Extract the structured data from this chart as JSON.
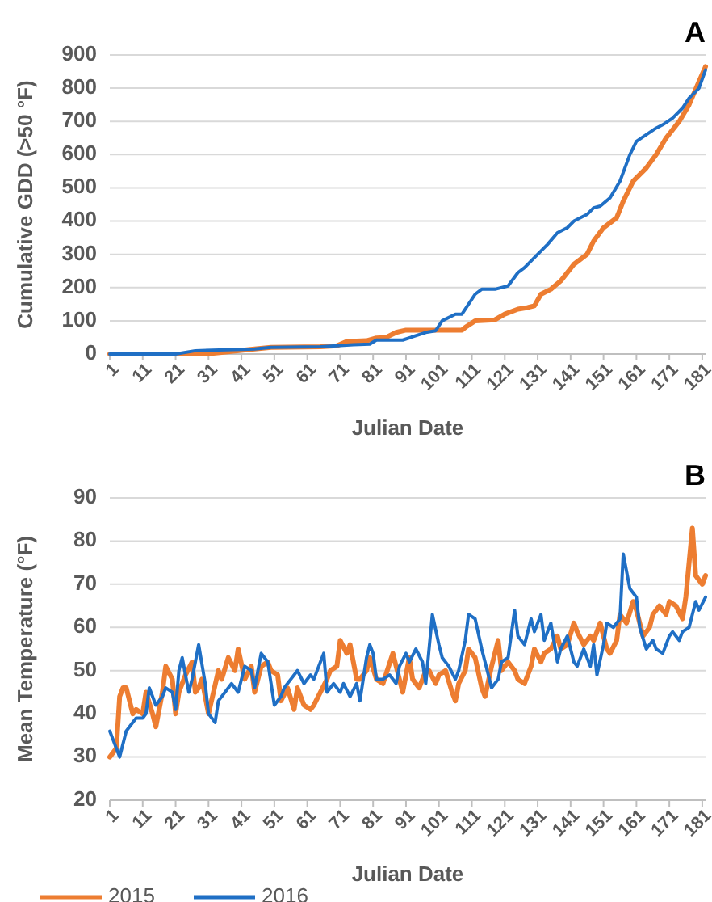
{
  "chart_data": [
    {
      "type": "line",
      "title": "A",
      "xlabel": "Julian Date",
      "ylabel": "Cumulative GDD (>50 °F)",
      "xlim": [
        1,
        182
      ],
      "xticks": [
        1,
        11,
        21,
        31,
        41,
        51,
        61,
        71,
        81,
        91,
        101,
        111,
        121,
        131,
        141,
        151,
        161,
        171,
        181
      ],
      "ylim": [
        0,
        900
      ],
      "yticks": [
        0,
        100,
        200,
        300,
        400,
        500,
        600,
        700,
        800,
        900
      ],
      "grid": "y",
      "line_style": "solid",
      "marker": "none",
      "series": [
        {
          "color": "#ed7d31",
          "x": [
            1,
            30,
            35,
            45,
            50,
            65,
            70,
            73,
            79,
            82,
            85,
            88,
            91,
            100,
            108,
            109,
            112,
            118,
            121,
            125,
            128,
            130,
            132,
            135,
            138,
            142,
            146,
            148,
            151,
            155,
            157,
            160,
            164,
            167,
            170,
            174,
            177,
            180,
            182
          ],
          "values": [
            0,
            0,
            5,
            15,
            20,
            22,
            25,
            38,
            40,
            48,
            50,
            65,
            72,
            72,
            72,
            80,
            100,
            103,
            120,
            135,
            140,
            145,
            180,
            195,
            220,
            270,
            300,
            340,
            380,
            410,
            460,
            520,
            560,
            600,
            650,
            700,
            750,
            820,
            865
          ]
        },
        {
          "color": "#1f6fc5",
          "x": [
            1,
            21,
            27,
            45,
            50,
            65,
            75,
            80,
            82,
            90,
            97,
            100,
            102,
            106,
            108,
            112,
            114,
            118,
            122,
            125,
            127,
            131,
            134,
            137,
            140,
            142,
            146,
            148,
            150,
            153,
            156,
            159,
            161,
            164,
            167,
            169,
            172,
            175,
            177,
            180,
            182
          ],
          "values": [
            0,
            0,
            10,
            15,
            20,
            22,
            28,
            30,
            42,
            42,
            65,
            70,
            100,
            120,
            120,
            180,
            195,
            195,
            205,
            245,
            260,
            300,
            330,
            365,
            380,
            400,
            420,
            440,
            445,
            470,
            520,
            600,
            640,
            660,
            680,
            690,
            710,
            740,
            770,
            800,
            855
          ]
        }
      ]
    },
    {
      "type": "line",
      "title": "B",
      "xlabel": "Julian Date",
      "ylabel": "Mean Temperature (°F)",
      "xlim": [
        1,
        182
      ],
      "xticks": [
        1,
        11,
        21,
        31,
        41,
        51,
        61,
        71,
        81,
        91,
        101,
        111,
        121,
        131,
        141,
        151,
        161,
        171,
        181
      ],
      "ylim": [
        20,
        90
      ],
      "yticks": [
        20,
        30,
        40,
        50,
        60,
        70,
        80,
        90
      ],
      "grid": "y",
      "legend": "bottom",
      "line_style": "solid",
      "marker": "none",
      "series": [
        {
          "name": "2015",
          "color": "#ed7d31",
          "x": [
            1,
            3,
            4,
            5,
            6,
            8,
            9,
            11,
            12,
            14,
            15,
            17,
            18,
            20,
            21,
            22,
            24,
            26,
            27,
            28,
            29,
            31,
            34,
            35,
            37,
            39,
            40,
            42,
            44,
            45,
            47,
            49,
            50,
            52,
            53,
            55,
            57,
            58,
            60,
            62,
            63,
            65,
            67,
            68,
            70,
            71,
            73,
            74,
            76,
            77,
            79,
            80,
            82,
            84,
            87,
            88,
            90,
            92,
            93,
            95,
            97,
            98,
            100,
            101,
            103,
            105,
            106,
            107,
            109,
            110,
            112,
            114,
            115,
            117,
            119,
            120,
            122,
            124,
            125,
            127,
            129,
            130,
            132,
            133,
            135,
            137,
            138,
            140,
            142,
            143,
            145,
            147,
            148,
            150,
            152,
            153,
            155,
            156,
            158,
            160,
            161,
            163,
            165,
            166,
            168,
            170,
            171,
            173,
            175,
            176,
            178,
            179,
            181,
            182
          ],
          "values": [
            30,
            32,
            44,
            46,
            46,
            40,
            41,
            40,
            45,
            40,
            37,
            45,
            51,
            48,
            40,
            45,
            49,
            52,
            45,
            46,
            48,
            40,
            50,
            48,
            53,
            50,
            55,
            48,
            51,
            45,
            51,
            52,
            50,
            49,
            43,
            46,
            41,
            46,
            42,
            41,
            42,
            45,
            48,
            50,
            51,
            57,
            54,
            56,
            48,
            48,
            50,
            53,
            48,
            47,
            54,
            51,
            45,
            53,
            48,
            46,
            50,
            50,
            47,
            49,
            50,
            45,
            43,
            47,
            50,
            55,
            53,
            46,
            44,
            51,
            57,
            50,
            52,
            50,
            48,
            47,
            51,
            55,
            52,
            54,
            55,
            58,
            55,
            56,
            61,
            59,
            56,
            58,
            57,
            61,
            55,
            54,
            57,
            63,
            61,
            66,
            64,
            58,
            60,
            63,
            65,
            63,
            66,
            65,
            62,
            67,
            83,
            72,
            70,
            72
          ]
        },
        {
          "name": "2016",
          "color": "#1f6fc5",
          "x": [
            1,
            3,
            4,
            6,
            8,
            9,
            11,
            12,
            13,
            15,
            17,
            18,
            20,
            21,
            22,
            23,
            25,
            26,
            28,
            30,
            31,
            33,
            34,
            36,
            38,
            40,
            42,
            44,
            45,
            47,
            49,
            51,
            53,
            54,
            56,
            58,
            60,
            62,
            63,
            65,
            66,
            67,
            69,
            71,
            72,
            74,
            76,
            77,
            79,
            80,
            81,
            82,
            84,
            86,
            88,
            89,
            91,
            92,
            94,
            96,
            97,
            99,
            101,
            102,
            104,
            106,
            107,
            109,
            110,
            112,
            114,
            115,
            117,
            119,
            120,
            122,
            124,
            125,
            127,
            129,
            130,
            132,
            133,
            135,
            137,
            138,
            140,
            142,
            143,
            145,
            147,
            148,
            149,
            151,
            152,
            154,
            156,
            157,
            159,
            161,
            162,
            164,
            166,
            167,
            169,
            171,
            172,
            174,
            175,
            177,
            179,
            180,
            182
          ],
          "values": [
            36,
            32,
            30,
            36,
            38,
            39,
            39,
            40,
            46,
            42,
            44,
            46,
            45,
            41,
            50,
            53,
            45,
            48,
            56,
            47,
            40,
            38,
            43,
            45,
            47,
            45,
            51,
            50,
            46,
            54,
            52,
            42,
            44,
            46,
            48,
            50,
            47,
            49,
            48,
            52,
            54,
            45,
            47,
            45,
            47,
            44,
            47,
            43,
            53,
            56,
            54,
            48,
            48,
            49,
            47,
            51,
            54,
            52,
            55,
            52,
            47,
            63,
            56,
            53,
            51,
            48,
            50,
            57,
            63,
            62,
            55,
            52,
            46,
            48,
            52,
            53,
            64,
            58,
            56,
            62,
            59,
            63,
            57,
            61,
            52,
            55,
            58,
            52,
            51,
            55,
            51,
            56,
            49,
            56,
            61,
            60,
            62,
            77,
            69,
            67,
            60,
            55,
            57,
            55,
            54,
            58,
            59,
            57,
            59,
            60,
            66,
            64,
            67
          ]
        }
      ]
    }
  ]
}
